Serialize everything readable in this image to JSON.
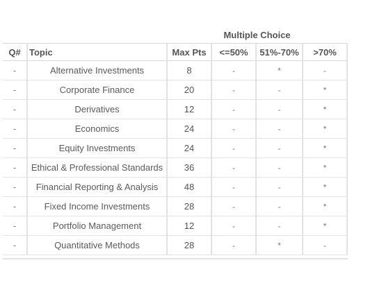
{
  "table": {
    "section_heading": "Multiple Choice",
    "headers": {
      "q": "Q#",
      "topic": "Topic",
      "max_pts": "Max Pts",
      "band_low": "<=50%",
      "band_mid": "51%-70%",
      "band_high": ">70%"
    },
    "rows": [
      {
        "q": "-",
        "topic": "Alternative Investments",
        "max_pts": "8",
        "band_low": "-",
        "band_mid": "*",
        "band_high": "-"
      },
      {
        "q": "-",
        "topic": "Corporate Finance",
        "max_pts": "20",
        "band_low": "-",
        "band_mid": "-",
        "band_high": "*"
      },
      {
        "q": "-",
        "topic": "Derivatives",
        "max_pts": "12",
        "band_low": "-",
        "band_mid": "-",
        "band_high": "*"
      },
      {
        "q": "-",
        "topic": "Economics",
        "max_pts": "24",
        "band_low": "-",
        "band_mid": "-",
        "band_high": "*"
      },
      {
        "q": "-",
        "topic": "Equity Investments",
        "max_pts": "24",
        "band_low": "-",
        "band_mid": "-",
        "band_high": "*"
      },
      {
        "q": "-",
        "topic": "Ethical & Professional Standards",
        "max_pts": "36",
        "band_low": "-",
        "band_mid": "-",
        "band_high": "*"
      },
      {
        "q": "-",
        "topic": "Financial Reporting & Analysis",
        "max_pts": "48",
        "band_low": "-",
        "band_mid": "-",
        "band_high": "*"
      },
      {
        "q": "-",
        "topic": "Fixed Income Investments",
        "max_pts": "28",
        "band_low": "-",
        "band_mid": "-",
        "band_high": "*"
      },
      {
        "q": "-",
        "topic": "Portfolio Management",
        "max_pts": "12",
        "band_low": "-",
        "band_mid": "-",
        "band_high": "*"
      },
      {
        "q": "-",
        "topic": "Quantitative Methods",
        "max_pts": "28",
        "band_low": "-",
        "band_mid": "*",
        "band_high": "-"
      }
    ]
  }
}
